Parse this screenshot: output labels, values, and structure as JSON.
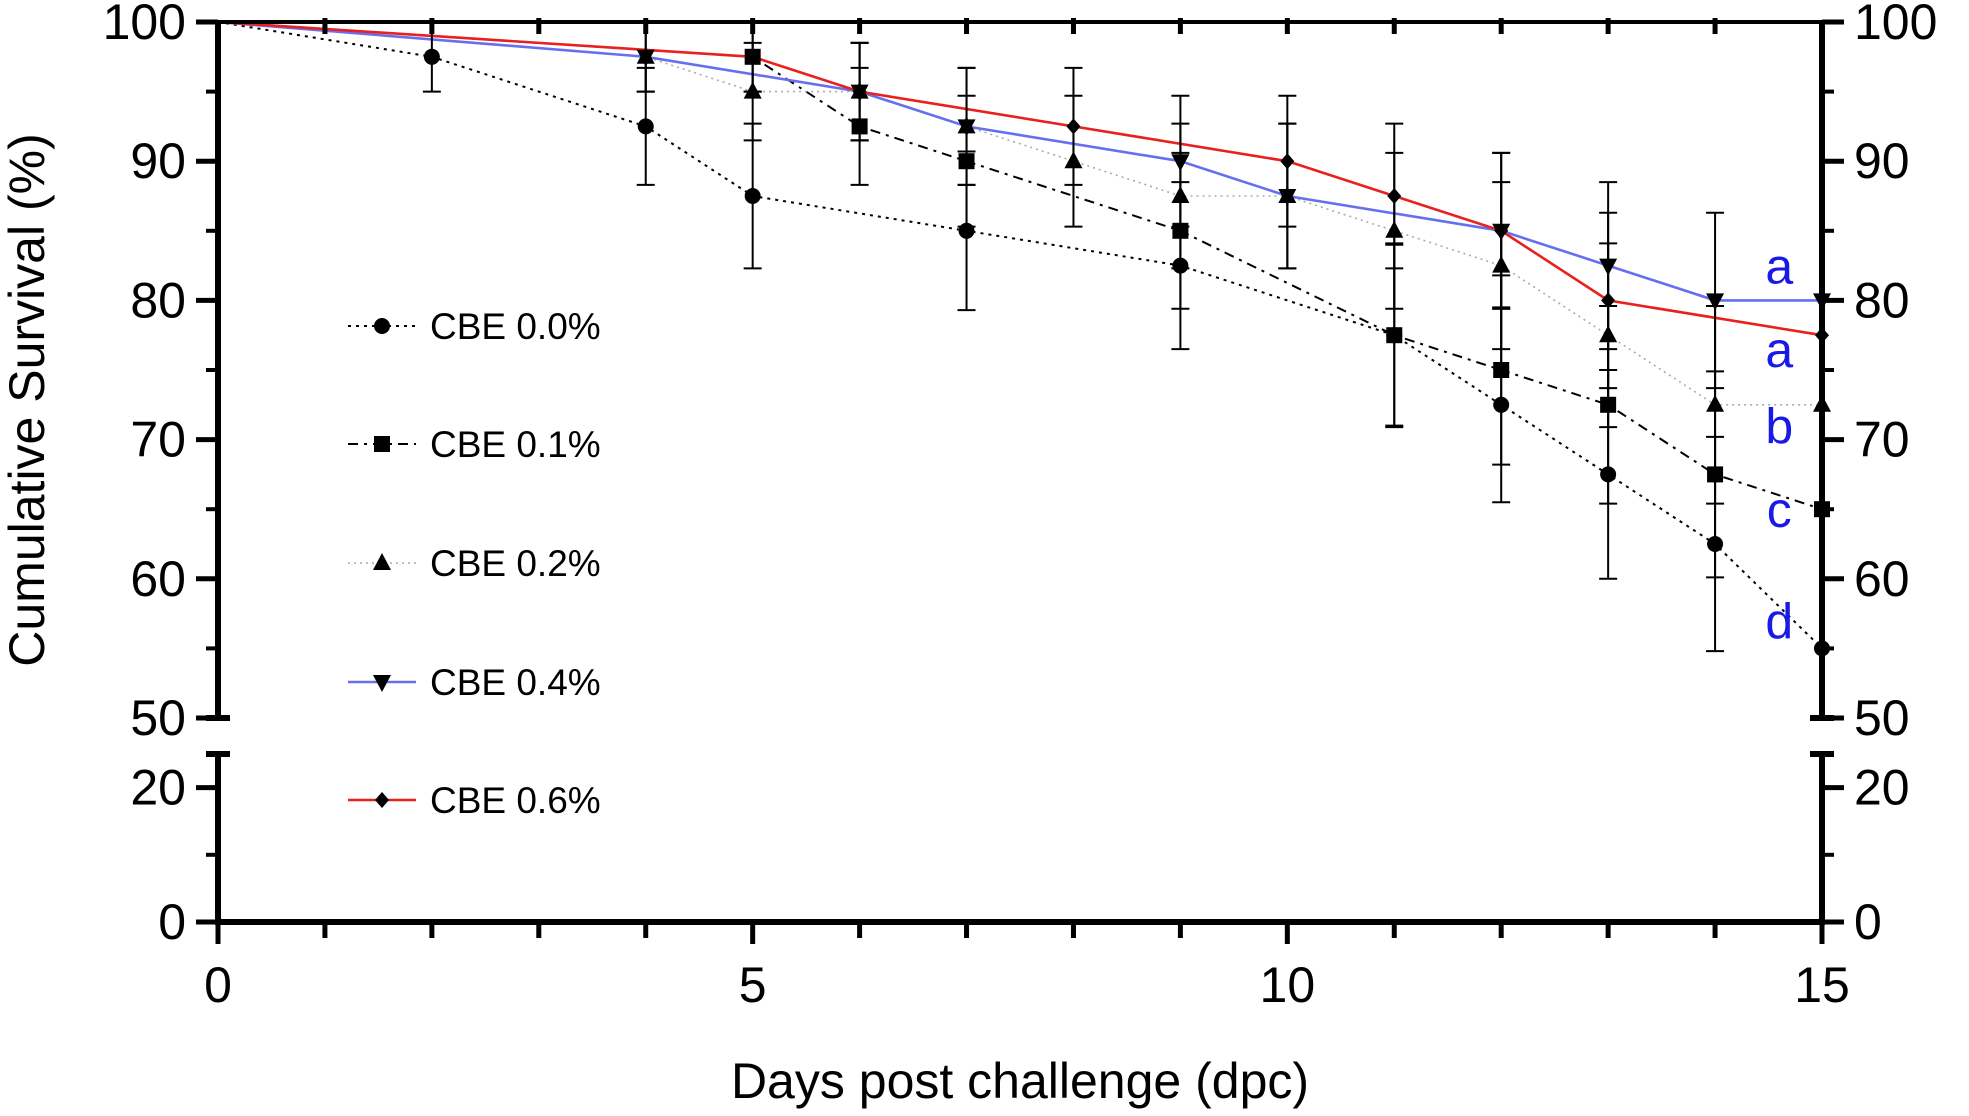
{
  "chart_data": {
    "type": "line",
    "title": "",
    "xlabel": "Days post challenge (dpc)",
    "ylabel": "Cumulative Survival (%)",
    "xlim": [
      0,
      15
    ],
    "ylim_lower": [
      0,
      25
    ],
    "ylim_upper": [
      50,
      100
    ],
    "x_ticks": [
      "0",
      "5",
      "10",
      "15"
    ],
    "y_ticks_upper": [
      "100",
      "90",
      "80",
      "70",
      "60",
      "50"
    ],
    "y_ticks_lower": [
      "20",
      "0"
    ],
    "y_ticks_right_upper": [
      "100",
      "90",
      "80",
      "70",
      "60",
      "50"
    ],
    "y_ticks_right_lower": [
      "20",
      "0"
    ],
    "series": [
      {
        "name": "CBE 0.0%",
        "marker": "circle",
        "line_style": "dotted",
        "color": "#000000",
        "x": [
          0,
          2,
          4,
          5,
          7,
          9,
          11,
          12,
          13,
          14,
          15
        ],
        "values": [
          100,
          97.5,
          92.5,
          87.5,
          85,
          82.5,
          77.5,
          72.5,
          67.5,
          62.5,
          55
        ],
        "errors": [
          0,
          2.5,
          4.2,
          5.2,
          5.7,
          6,
          6.6,
          7,
          7.5,
          7.7,
          0
        ]
      },
      {
        "name": "CBE 0.1%",
        "marker": "square",
        "line_style": "dashdot",
        "color": "#000000",
        "x": [
          0,
          5,
          6,
          7,
          9,
          11,
          12,
          13,
          14,
          15
        ],
        "values": [
          100,
          97.5,
          92.5,
          90,
          85,
          77.5,
          75,
          72.5,
          67.5,
          65
        ],
        "errors": [
          0,
          2.5,
          4.2,
          4.7,
          5.6,
          6.5,
          6.8,
          7.1,
          7.4,
          0
        ]
      },
      {
        "name": "CBE 0.2%",
        "marker": "triangle-up",
        "line_style": "dotted-light",
        "color": "#aaaaaa",
        "x": [
          0,
          4,
          5,
          6,
          7,
          8,
          9,
          10,
          11,
          12,
          13,
          14,
          15
        ],
        "values": [
          100,
          97.5,
          95,
          95,
          92.5,
          90,
          87.5,
          87.5,
          85,
          82.5,
          77.5,
          72.5,
          72.5
        ],
        "errors": [
          0,
          2.5,
          3.5,
          3.5,
          4.2,
          4.7,
          5.2,
          5.2,
          5.6,
          6,
          6.6,
          7.1,
          0
        ]
      },
      {
        "name": "CBE 0.4%",
        "marker": "triangle-down",
        "line_style": "solid",
        "color": "#6670ee",
        "x": [
          0,
          4,
          6,
          7,
          9,
          10,
          12,
          13,
          14,
          15
        ],
        "values": [
          100,
          97.5,
          95,
          92.5,
          90,
          87.5,
          85,
          82.5,
          80,
          80
        ],
        "errors": [
          0,
          2.5,
          3.5,
          4.2,
          4.7,
          5.2,
          5.6,
          6,
          6.3,
          0
        ]
      },
      {
        "name": "CBE 0.6%",
        "marker": "diamond",
        "line_style": "solid",
        "color": "#e8201e",
        "x": [
          0,
          5,
          6,
          8,
          10,
          11,
          12,
          13,
          15
        ],
        "values": [
          100,
          97.5,
          95,
          92.5,
          90,
          87.5,
          85,
          80,
          77.5
        ],
        "errors": [
          0,
          2.5,
          3.5,
          4.2,
          4.7,
          5.2,
          5.6,
          6.3,
          0
        ]
      }
    ],
    "annotations": [
      {
        "text": "a",
        "x": 14.6,
        "y": 82.5,
        "color": "#1a1ae6"
      },
      {
        "text": "a",
        "x": 14.6,
        "y": 76.5,
        "color": "#1a1ae6"
      },
      {
        "text": "b",
        "x": 14.6,
        "y": 71,
        "color": "#1a1ae6"
      },
      {
        "text": "c",
        "x": 14.6,
        "y": 65,
        "color": "#1a1ae6"
      },
      {
        "text": "d",
        "x": 14.6,
        "y": 57,
        "color": "#1a1ae6"
      }
    ],
    "legend_position": "left"
  }
}
